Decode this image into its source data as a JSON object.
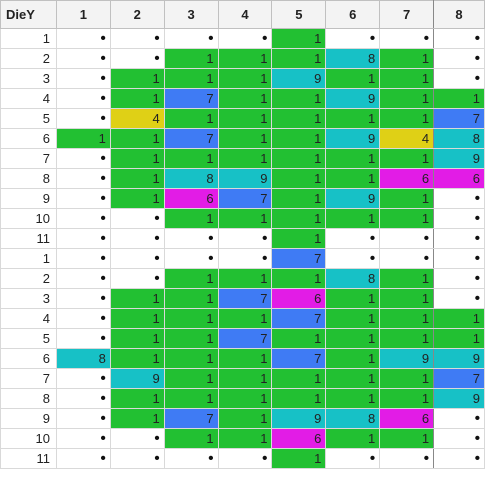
{
  "header": {
    "corner": "DieY",
    "cols": [
      "1",
      "2",
      "3",
      "4",
      "5",
      "6",
      "7",
      "8"
    ]
  },
  "colors": {
    "g": "#22c032",
    "c": "#17c1c6",
    "b": "#3f7bf4",
    "y": "#dfd016",
    "m": "#e21ce6",
    "w": "#ffffff"
  },
  "rows": [
    {
      "label": "1",
      "cells": [
        [
          "•",
          "w"
        ],
        [
          "•",
          "w"
        ],
        [
          "•",
          "w"
        ],
        [
          "•",
          "w"
        ],
        [
          "1",
          "g"
        ],
        [
          "•",
          "w"
        ],
        [
          "•",
          "w"
        ],
        [
          "•",
          "w"
        ]
      ]
    },
    {
      "label": "2",
      "cells": [
        [
          "•",
          "w"
        ],
        [
          "•",
          "w"
        ],
        [
          "1",
          "g"
        ],
        [
          "1",
          "g"
        ],
        [
          "1",
          "g"
        ],
        [
          "8",
          "c"
        ],
        [
          "1",
          "g"
        ],
        [
          "•",
          "w"
        ]
      ]
    },
    {
      "label": "3",
      "cells": [
        [
          "•",
          "w"
        ],
        [
          "1",
          "g"
        ],
        [
          "1",
          "g"
        ],
        [
          "1",
          "g"
        ],
        [
          "9",
          "c"
        ],
        [
          "1",
          "g"
        ],
        [
          "1",
          "g"
        ],
        [
          "•",
          "w"
        ]
      ]
    },
    {
      "label": "4",
      "cells": [
        [
          "•",
          "w"
        ],
        [
          "1",
          "g"
        ],
        [
          "7",
          "b"
        ],
        [
          "1",
          "g"
        ],
        [
          "1",
          "g"
        ],
        [
          "9",
          "c"
        ],
        [
          "1",
          "g"
        ],
        [
          "1",
          "g"
        ]
      ]
    },
    {
      "label": "5",
      "cells": [
        [
          "•",
          "w"
        ],
        [
          "4",
          "y"
        ],
        [
          "1",
          "g"
        ],
        [
          "1",
          "g"
        ],
        [
          "1",
          "g"
        ],
        [
          "1",
          "g"
        ],
        [
          "1",
          "g"
        ],
        [
          "7",
          "b"
        ]
      ]
    },
    {
      "label": "6",
      "cells": [
        [
          "1",
          "g"
        ],
        [
          "1",
          "g"
        ],
        [
          "7",
          "b"
        ],
        [
          "1",
          "g"
        ],
        [
          "1",
          "g"
        ],
        [
          "9",
          "c"
        ],
        [
          "4",
          "y"
        ],
        [
          "8",
          "c"
        ]
      ]
    },
    {
      "label": "7",
      "cells": [
        [
          "•",
          "w"
        ],
        [
          "1",
          "g"
        ],
        [
          "1",
          "g"
        ],
        [
          "1",
          "g"
        ],
        [
          "1",
          "g"
        ],
        [
          "1",
          "g"
        ],
        [
          "1",
          "g"
        ],
        [
          "9",
          "c"
        ]
      ]
    },
    {
      "label": "8",
      "cells": [
        [
          "•",
          "w"
        ],
        [
          "1",
          "g"
        ],
        [
          "8",
          "c"
        ],
        [
          "9",
          "c"
        ],
        [
          "1",
          "g"
        ],
        [
          "1",
          "g"
        ],
        [
          "6",
          "m"
        ],
        [
          "6",
          "m"
        ]
      ]
    },
    {
      "label": "9",
      "cells": [
        [
          "•",
          "w"
        ],
        [
          "1",
          "g"
        ],
        [
          "6",
          "m"
        ],
        [
          "7",
          "b"
        ],
        [
          "1",
          "g"
        ],
        [
          "9",
          "c"
        ],
        [
          "1",
          "g"
        ],
        [
          "•",
          "w"
        ]
      ]
    },
    {
      "label": "10",
      "cells": [
        [
          "•",
          "w"
        ],
        [
          "•",
          "w"
        ],
        [
          "1",
          "g"
        ],
        [
          "1",
          "g"
        ],
        [
          "1",
          "g"
        ],
        [
          "1",
          "g"
        ],
        [
          "1",
          "g"
        ],
        [
          "•",
          "w"
        ]
      ]
    },
    {
      "label": "11",
      "cells": [
        [
          "•",
          "w"
        ],
        [
          "•",
          "w"
        ],
        [
          "•",
          "w"
        ],
        [
          "•",
          "w"
        ],
        [
          "1",
          "g"
        ],
        [
          "•",
          "w"
        ],
        [
          "•",
          "w"
        ],
        [
          "•",
          "w"
        ]
      ]
    },
    {
      "label": "1",
      "cells": [
        [
          "•",
          "w"
        ],
        [
          "•",
          "w"
        ],
        [
          "•",
          "w"
        ],
        [
          "•",
          "w"
        ],
        [
          "7",
          "b"
        ],
        [
          "•",
          "w"
        ],
        [
          "•",
          "w"
        ],
        [
          "•",
          "w"
        ]
      ]
    },
    {
      "label": "2",
      "cells": [
        [
          "•",
          "w"
        ],
        [
          "•",
          "w"
        ],
        [
          "1",
          "g"
        ],
        [
          "1",
          "g"
        ],
        [
          "1",
          "g"
        ],
        [
          "8",
          "c"
        ],
        [
          "1",
          "g"
        ],
        [
          "•",
          "w"
        ]
      ]
    },
    {
      "label": "3",
      "cells": [
        [
          "•",
          "w"
        ],
        [
          "1",
          "g"
        ],
        [
          "1",
          "g"
        ],
        [
          "7",
          "b"
        ],
        [
          "6",
          "m"
        ],
        [
          "1",
          "g"
        ],
        [
          "1",
          "g"
        ],
        [
          "•",
          "w"
        ]
      ]
    },
    {
      "label": "4",
      "cells": [
        [
          "•",
          "w"
        ],
        [
          "1",
          "g"
        ],
        [
          "1",
          "g"
        ],
        [
          "1",
          "g"
        ],
        [
          "7",
          "b"
        ],
        [
          "1",
          "g"
        ],
        [
          "1",
          "g"
        ],
        [
          "1",
          "g"
        ]
      ]
    },
    {
      "label": "5",
      "cells": [
        [
          "•",
          "w"
        ],
        [
          "1",
          "g"
        ],
        [
          "1",
          "g"
        ],
        [
          "7",
          "b"
        ],
        [
          "1",
          "g"
        ],
        [
          "1",
          "g"
        ],
        [
          "1",
          "g"
        ],
        [
          "1",
          "g"
        ]
      ]
    },
    {
      "label": "6",
      "cells": [
        [
          "8",
          "c"
        ],
        [
          "1",
          "g"
        ],
        [
          "1",
          "g"
        ],
        [
          "1",
          "g"
        ],
        [
          "7",
          "b"
        ],
        [
          "1",
          "g"
        ],
        [
          "9",
          "c"
        ],
        [
          "9",
          "c"
        ]
      ]
    },
    {
      "label": "7",
      "cells": [
        [
          "•",
          "w"
        ],
        [
          "9",
          "c"
        ],
        [
          "1",
          "g"
        ],
        [
          "1",
          "g"
        ],
        [
          "1",
          "g"
        ],
        [
          "1",
          "g"
        ],
        [
          "1",
          "g"
        ],
        [
          "7",
          "b"
        ]
      ]
    },
    {
      "label": "8",
      "cells": [
        [
          "•",
          "w"
        ],
        [
          "1",
          "g"
        ],
        [
          "1",
          "g"
        ],
        [
          "1",
          "g"
        ],
        [
          "1",
          "g"
        ],
        [
          "1",
          "g"
        ],
        [
          "1",
          "g"
        ],
        [
          "9",
          "c"
        ]
      ]
    },
    {
      "label": "9",
      "cells": [
        [
          "•",
          "w"
        ],
        [
          "1",
          "g"
        ],
        [
          "7",
          "b"
        ],
        [
          "1",
          "g"
        ],
        [
          "9",
          "c"
        ],
        [
          "8",
          "c"
        ],
        [
          "6",
          "m"
        ],
        [
          "•",
          "w"
        ]
      ]
    },
    {
      "label": "10",
      "cells": [
        [
          "•",
          "w"
        ],
        [
          "•",
          "w"
        ],
        [
          "1",
          "g"
        ],
        [
          "1",
          "g"
        ],
        [
          "6",
          "m"
        ],
        [
          "1",
          "g"
        ],
        [
          "1",
          "g"
        ],
        [
          "•",
          "w"
        ]
      ]
    },
    {
      "label": "11",
      "cells": [
        [
          "•",
          "w"
        ],
        [
          "•",
          "w"
        ],
        [
          "•",
          "w"
        ],
        [
          "•",
          "w"
        ],
        [
          "1",
          "g"
        ],
        [
          "•",
          "w"
        ],
        [
          "•",
          "w"
        ],
        [
          "•",
          "w"
        ]
      ]
    }
  ]
}
